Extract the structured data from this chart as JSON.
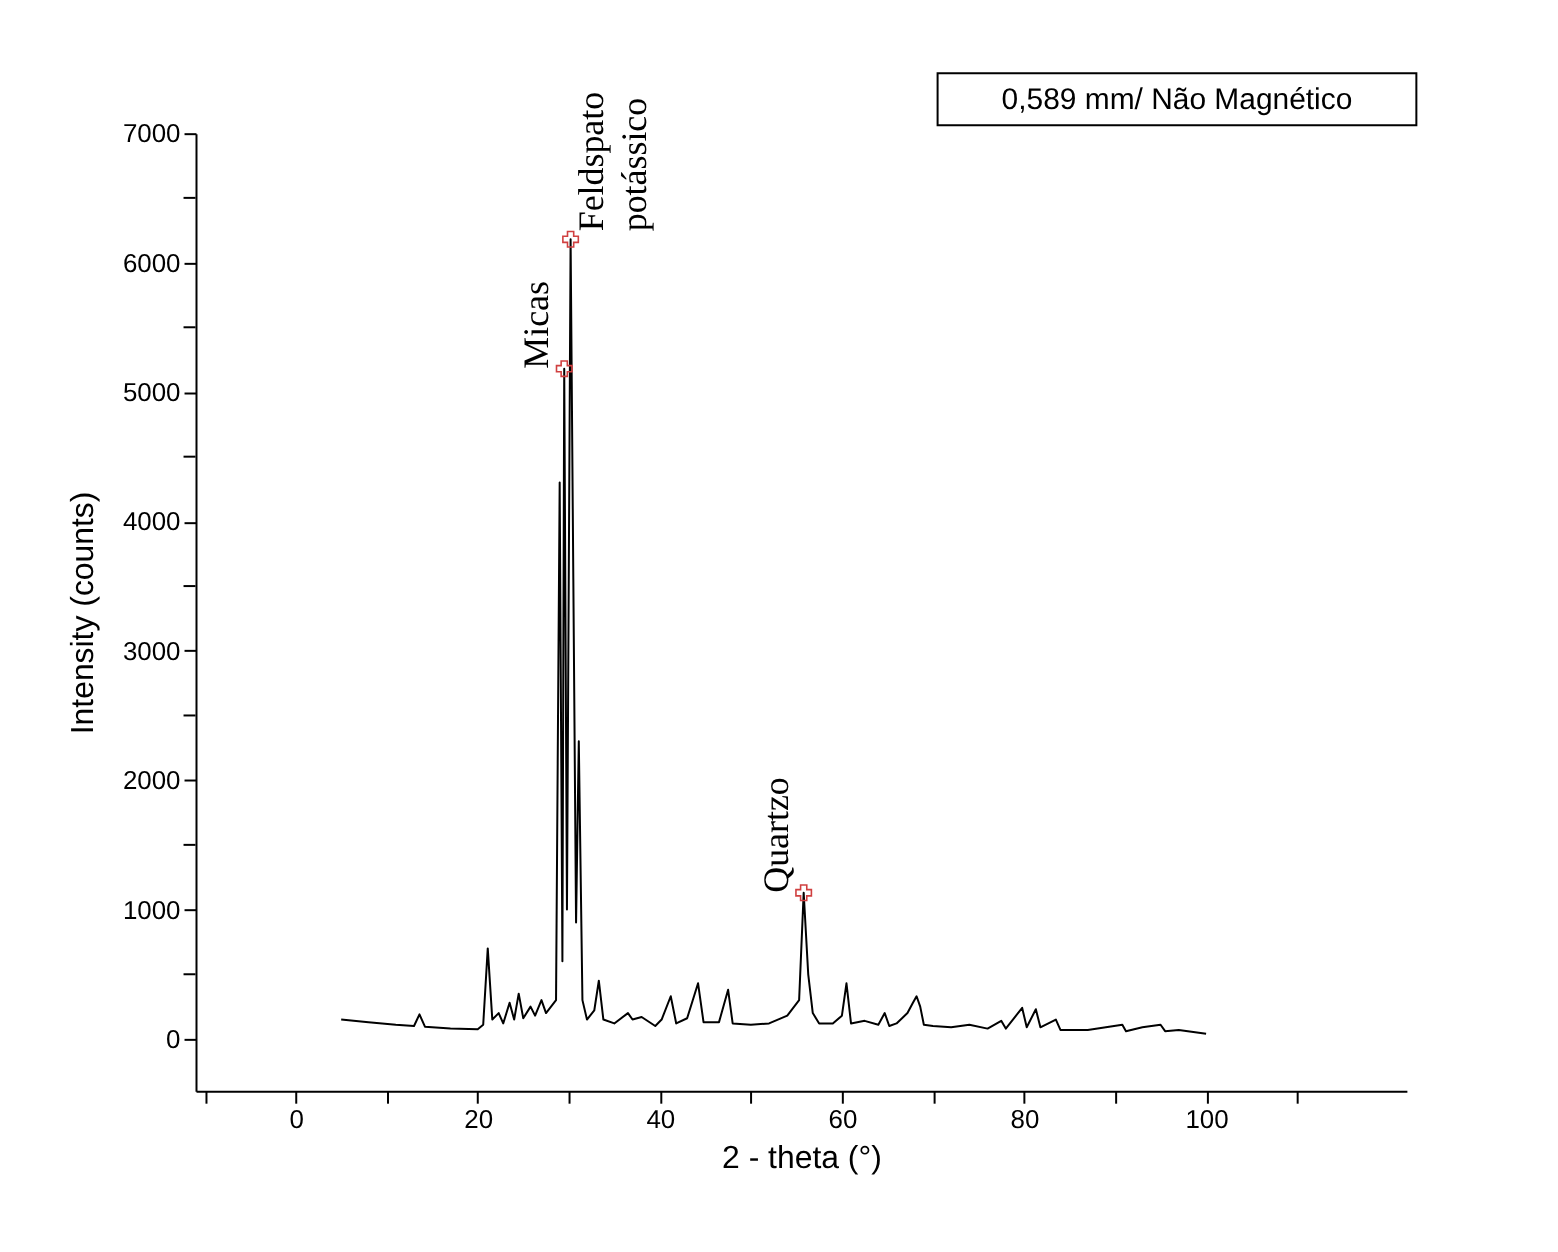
{
  "chart_data": {
    "type": "line",
    "xlabel": "2 - theta (°)",
    "ylabel": "Intensity (counts)",
    "x": [
      5,
      8,
      11,
      13,
      13.6,
      14.2,
      17,
      20,
      20.6,
      21.1,
      21.6,
      22.3,
      22.8,
      23.5,
      24,
      24.5,
      25,
      25.8,
      26.3,
      27,
      27.5,
      28.6,
      29.0,
      29.3,
      29.5,
      29.8,
      30.2,
      30.5,
      30.8,
      31.1,
      31.5,
      32,
      32.8,
      33.3,
      33.8,
      35,
      36.5,
      37,
      38,
      39.5,
      40.2,
      41.2,
      41.8,
      43,
      44.2,
      44.8,
      46.5,
      47.5,
      48,
      50,
      52,
      54,
      55.3,
      55.8,
      56.3,
      56.8,
      57.5,
      59,
      60,
      60.5,
      61,
      62.5,
      64,
      64.7,
      65.2,
      66,
      67.2,
      67.8,
      68.2,
      68.6,
      69,
      70,
      72,
      74,
      76,
      77.5,
      78,
      79.8,
      80.3,
      81.3,
      81.8,
      83.5,
      84,
      87,
      90.8,
      91.2,
      93,
      95,
      95.5,
      97,
      100
    ],
    "series": [
      {
        "color": "#000000",
        "values": [
          150,
          130,
          110,
          100,
          190,
          95,
          80,
          75,
          110,
          700,
          150,
          200,
          120,
          280,
          150,
          350,
          160,
          250,
          180,
          300,
          200,
          300,
          4300,
          600,
          5180,
          1000,
          6180,
          3550,
          900,
          2300,
          300,
          150,
          220,
          450,
          150,
          120,
          200,
          150,
          170,
          100,
          150,
          330,
          120,
          160,
          430,
          130,
          130,
          380,
          120,
          110,
          120,
          180,
          300,
          1130,
          500,
          200,
          120,
          120,
          180,
          430,
          120,
          140,
          110,
          200,
          100,
          120,
          200,
          280,
          330,
          250,
          110,
          100,
          90,
          110,
          80,
          140,
          80,
          240,
          90,
          230,
          90,
          150,
          70,
          70,
          110,
          60,
          90,
          110,
          60,
          70,
          40
        ]
      }
    ],
    "xlim": [
      -11,
      122
    ],
    "ylim": [
      -400,
      7000
    ],
    "xticks": [
      {
        "value": -10,
        "label": null
      },
      0,
      {
        "value": 10,
        "label": null
      },
      20,
      {
        "value": 30,
        "label": null
      },
      40,
      {
        "value": 50,
        "label": null
      },
      60,
      {
        "value": 70,
        "label": null
      },
      80,
      {
        "value": 90,
        "label": null
      },
      100,
      {
        "value": 110,
        "label": null
      }
    ],
    "yticks": [
      0,
      {
        "value": 500,
        "label": null
      },
      1000,
      {
        "value": 1500,
        "label": null
      },
      2000,
      {
        "value": 2500,
        "label": null
      },
      3000,
      {
        "value": 3500,
        "label": null
      },
      4000,
      {
        "value": 4500,
        "label": null
      },
      5000,
      {
        "value": 5500,
        "label": null
      },
      6000,
      {
        "value": 6500,
        "label": null
      },
      7000
    ],
    "grid": false,
    "marker": "none",
    "line_style": "solid",
    "annotations": [
      {
        "text": "Micas",
        "x": 29.5,
        "y": 5180
      },
      {
        "text": "Feldspato\npotássico",
        "x": 30.2,
        "y": 6180
      },
      {
        "text": "Quartzo",
        "x": 55.8,
        "y": 1130
      },
      "0,589 mm/ Não Magnético"
    ]
  }
}
